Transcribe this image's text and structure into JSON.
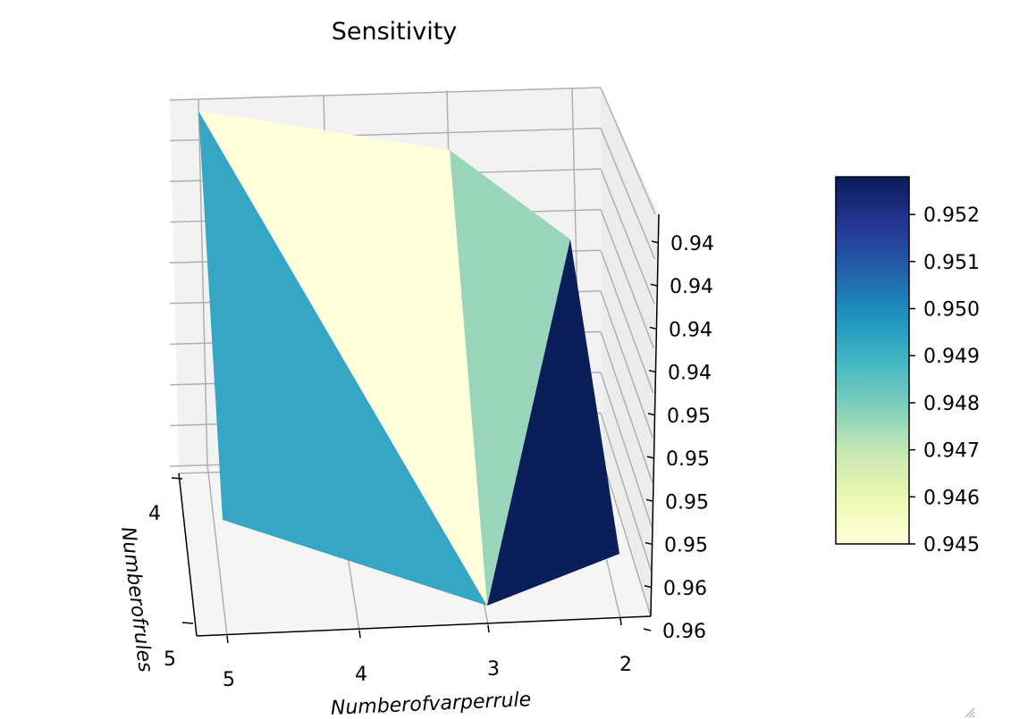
{
  "chart_data": {
    "type": "surface3d",
    "title": "Sensitivity",
    "xlabel": "Numberofvarperrule",
    "ylabel": "Numberofrules",
    "zlabel": "",
    "x_ticks": [
      "5",
      "4",
      "3",
      "2"
    ],
    "y_ticks": [
      "4",
      "5"
    ],
    "z_ticks": [
      "0.94",
      "0.94",
      "0.94",
      "0.94",
      "0.95",
      "0.95",
      "0.95",
      "0.95",
      "0.96",
      "0.96"
    ],
    "colorbar": {
      "colormap": "YlGnBu",
      "min": 0.945,
      "max": 0.9528,
      "ticks": [
        "0.945",
        "0.946",
        "0.947",
        "0.948",
        "0.949",
        "0.950",
        "0.951",
        "0.952"
      ],
      "tick_values": [
        0.945,
        0.946,
        0.947,
        0.948,
        0.949,
        0.95,
        0.951,
        0.952
      ]
    },
    "faces": [
      {
        "name": "face-left",
        "color": "#35a7c5"
      },
      {
        "name": "face-middle-left",
        "color": "#ffffdc"
      },
      {
        "name": "face-middle-right",
        "color": "#98d5ba"
      },
      {
        "name": "face-right",
        "color": "#0a1e59"
      }
    ],
    "grid": true
  }
}
